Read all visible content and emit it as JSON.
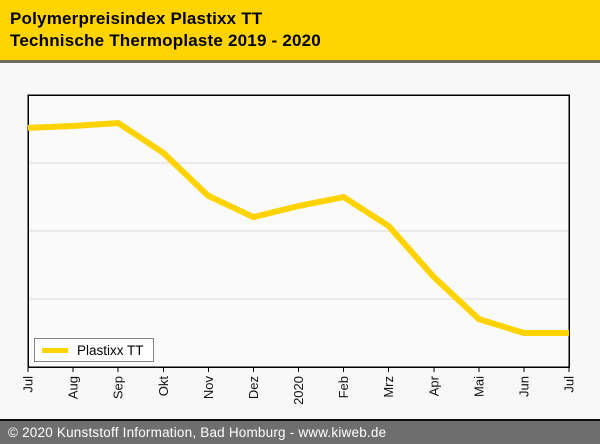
{
  "header": {
    "title_line1": "Polymerpreisindex Plastixx TT",
    "title_line2": "Technische Thermoplaste 2019 - 2020"
  },
  "chart_data": {
    "type": "line",
    "title": "Polymerpreisindex Plastixx TT — Technische Thermoplaste 2019 - 2020",
    "categories": [
      "Jul",
      "Aug",
      "Sep",
      "Okt",
      "Nov",
      "Dez",
      "2020",
      "Feb",
      "Mrz",
      "Apr",
      "Mai",
      "Jun",
      "Jul"
    ],
    "series": [
      {
        "name": "Plastixx TT",
        "color": "#ffd300",
        "values": [
          87.9,
          88.6,
          89.7,
          78.7,
          62.9,
          55.1,
          59.2,
          62.5,
          51.8,
          33.1,
          17.6,
          12.5,
          12.5
        ]
      }
    ],
    "xlabel": "",
    "ylabel": "",
    "ylim": [
      0,
      100
    ],
    "y_axis_labels_visible": false,
    "values_unit": "relative index (percent of plot height; y-axis unlabeled in source)",
    "gridlines_y": [
      25,
      50,
      75
    ],
    "grid": true,
    "legend_position": "bottom-left",
    "x_tick_rotation": -90
  },
  "legend": {
    "label": "Plastixx TT"
  },
  "footer": {
    "text": "© 2020 Kunststoff Information, Bad Homburg - www.kiweb.de"
  },
  "colors": {
    "header_bg": "#ffd400",
    "line": "#ffd300",
    "footer_bg": "#6e6e6e",
    "page_bg": "#f8f8f8",
    "plot_bg": "#fafafa",
    "gridline": "#d9d9d9"
  }
}
